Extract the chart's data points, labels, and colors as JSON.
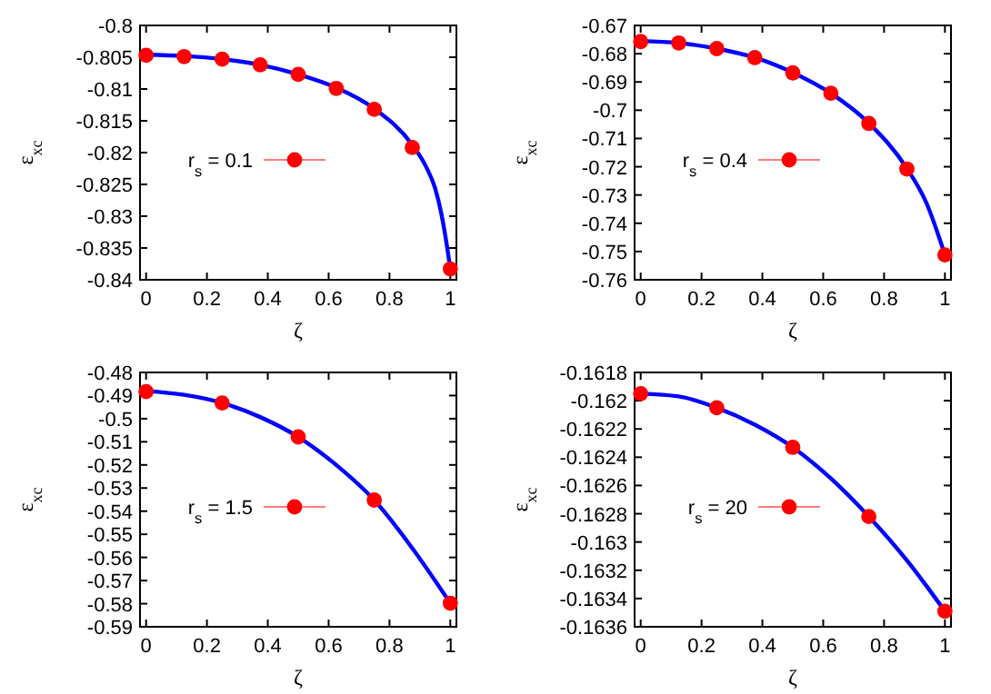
{
  "chart_data": [
    {
      "type": "scatter",
      "xlabel": "ζ",
      "ylabel": "ε$_{xc}$",
      "xlim": [
        -0.02,
        1.02
      ],
      "xticks": [
        0,
        0.2,
        0.4,
        0.6,
        0.8,
        1
      ],
      "ylim": [
        -0.84,
        -0.8
      ],
      "yticks": [
        -0.84,
        -0.835,
        -0.83,
        -0.825,
        -0.82,
        -0.815,
        -0.81,
        -0.805,
        -0.8
      ],
      "legend": "left",
      "series": [
        {
          "type": "line",
          "marker": "none",
          "color": "#0000ff",
          "x": [
            0,
            0.125,
            0.25,
            0.375,
            0.5,
            0.625,
            0.75,
            0.875,
            0.92,
            0.95,
            0.97,
            0.99,
            1
          ],
          "values": [
            -0.8046,
            -0.8048,
            -0.8053,
            -0.8062,
            -0.8077,
            -0.8098,
            -0.8131,
            -0.8188,
            -0.8222,
            -0.8256,
            -0.8295,
            -0.835,
            -0.8383
          ]
        },
        {
          "name": "r$_{s}$ = 0.1",
          "marker": "circle",
          "color": "#ff0000",
          "x": [
            0,
            0.125,
            0.25,
            0.375,
            0.5,
            0.625,
            0.75,
            0.875,
            1
          ],
          "values": [
            -0.8047,
            -0.8049,
            -0.8053,
            -0.8062,
            -0.8077,
            -0.8099,
            -0.8132,
            -0.8192,
            -0.8383
          ]
        }
      ]
    },
    {
      "type": "scatter",
      "xlabel": "ζ",
      "ylabel": "ε$_{xc}$",
      "xlim": [
        -0.02,
        1.02
      ],
      "xticks": [
        0,
        0.2,
        0.4,
        0.6,
        0.8,
        1
      ],
      "ylim": [
        -0.76,
        -0.67
      ],
      "yticks": [
        -0.76,
        -0.75,
        -0.74,
        -0.73,
        -0.72,
        -0.71,
        -0.7,
        -0.69,
        -0.68,
        -0.67
      ],
      "legend": "left",
      "series": [
        {
          "type": "line",
          "marker": "none",
          "color": "#0000ff",
          "x": [
            0,
            0.125,
            0.25,
            0.375,
            0.5,
            0.625,
            0.75,
            0.875,
            0.94,
            1
          ],
          "values": [
            -0.6755,
            -0.6762,
            -0.6782,
            -0.6814,
            -0.6867,
            -0.694,
            -0.7046,
            -0.7206,
            -0.733,
            -0.7512
          ]
        },
        {
          "name": "r$_{s}$ = 0.4",
          "marker": "circle",
          "color": "#ff0000",
          "x": [
            0,
            0.125,
            0.25,
            0.375,
            0.5,
            0.625,
            0.75,
            0.875,
            1
          ],
          "values": [
            -0.6757,
            -0.6762,
            -0.6782,
            -0.6814,
            -0.6868,
            -0.694,
            -0.7047,
            -0.7208,
            -0.7512
          ]
        }
      ]
    },
    {
      "type": "scatter",
      "xlabel": "ζ",
      "ylabel": "ε$_{xc}$",
      "xlim": [
        -0.02,
        1.02
      ],
      "xticks": [
        0,
        0.2,
        0.4,
        0.6,
        0.8,
        1
      ],
      "ylim": [
        -0.59,
        -0.48
      ],
      "yticks": [
        -0.59,
        -0.58,
        -0.57,
        -0.56,
        -0.55,
        -0.54,
        -0.53,
        -0.52,
        -0.51,
        -0.5,
        -0.49,
        -0.48
      ],
      "legend": "left",
      "series": [
        {
          "type": "line",
          "marker": "none",
          "color": "#0000ff",
          "x": [
            0,
            0.125,
            0.25,
            0.375,
            0.5,
            0.625,
            0.75,
            0.875,
            1
          ],
          "values": [
            -0.488,
            -0.4897,
            -0.4932,
            -0.4993,
            -0.5079,
            -0.52,
            -0.5352,
            -0.556,
            -0.5798
          ]
        },
        {
          "name": "r$_{s}$ = 1.5",
          "marker": "circle",
          "color": "#ff0000",
          "x": [
            0,
            0.25,
            0.5,
            0.75,
            1
          ],
          "values": [
            -0.4883,
            -0.4932,
            -0.5079,
            -0.5352,
            -0.5798
          ]
        }
      ]
    },
    {
      "type": "scatter",
      "xlabel": "ζ",
      "ylabel": "ε$_{xc}$",
      "xlim": [
        -0.02,
        1.02
      ],
      "xticks": [
        0,
        0.2,
        0.4,
        0.6,
        0.8,
        1
      ],
      "ylim": [
        -0.1636,
        -0.1618
      ],
      "yticks": [
        -0.1636,
        -0.1634,
        -0.1632,
        -0.163,
        -0.1628,
        -0.1626,
        -0.1624,
        -0.1622,
        -0.162,
        -0.1618
      ],
      "legend": "left",
      "series": [
        {
          "type": "line",
          "marker": "none",
          "color": "#0000ff",
          "x": [
            0,
            0.125,
            0.25,
            0.375,
            0.5,
            0.625,
            0.75,
            0.875,
            1
          ],
          "values": [
            -0.16195,
            -0.16197,
            -0.16205,
            -0.16217,
            -0.16233,
            -0.16255,
            -0.16282,
            -0.16313,
            -0.16349
          ]
        },
        {
          "name": "r$_{s}$ = 20",
          "marker": "circle",
          "color": "#ff0000",
          "x": [
            0,
            0.25,
            0.5,
            0.75,
            1
          ],
          "values": [
            -0.16195,
            -0.16205,
            -0.16233,
            -0.16282,
            -0.16349
          ]
        }
      ]
    }
  ]
}
